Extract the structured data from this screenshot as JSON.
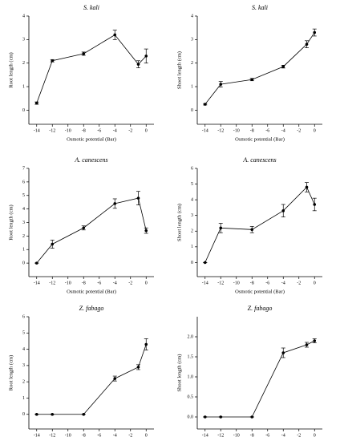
{
  "chart_data": [
    {
      "type": "line",
      "title": "S. kali",
      "xlabel": "Osmotic potential (Bar)",
      "ylabel": "Root length (cm)",
      "x": [
        -14,
        -12,
        -8,
        -4,
        -1,
        0
      ],
      "values": [
        0.3,
        2.1,
        2.4,
        3.2,
        1.95,
        2.3
      ],
      "errors": [
        0.05,
        0.05,
        0.07,
        0.2,
        0.15,
        0.3
      ],
      "xlim": [
        -15,
        1
      ],
      "xticks": [
        -14,
        -12,
        -10,
        -8,
        -6,
        -4,
        -2,
        0
      ],
      "ylim": [
        -0.6,
        4
      ],
      "yticks": [
        0,
        1,
        2,
        3,
        4
      ],
      "color": "#000000"
    },
    {
      "type": "line",
      "title": "S. kali",
      "xlabel": "Osmotic potential (Bar)",
      "ylabel": "Shoot length (cm)",
      "x": [
        -14,
        -12,
        -8,
        -4,
        -1,
        0
      ],
      "values": [
        0.25,
        1.1,
        1.3,
        1.85,
        2.8,
        3.3
      ],
      "errors": [
        0.03,
        0.12,
        0.05,
        0.06,
        0.15,
        0.15
      ],
      "xlim": [
        -15,
        1
      ],
      "xticks": [
        -14,
        -12,
        -10,
        -8,
        -6,
        -4,
        -2,
        0
      ],
      "ylim": [
        -0.6,
        4
      ],
      "yticks": [
        0,
        1,
        2,
        3,
        4
      ],
      "color": "#000000"
    },
    {
      "type": "line",
      "title": "A. canescens",
      "xlabel": "Osmotic potential (Bar)",
      "ylabel": "Root length (cm)",
      "x": [
        -14,
        -12,
        -8,
        -4,
        -1,
        0
      ],
      "values": [
        0,
        1.4,
        2.6,
        4.4,
        4.8,
        2.4
      ],
      "errors": [
        0,
        0.3,
        0.15,
        0.35,
        0.5,
        0.2
      ],
      "xlim": [
        -15,
        1
      ],
      "xticks": [
        -14,
        -12,
        -10,
        -8,
        -6,
        -4,
        -2,
        0
      ],
      "ylim": [
        -1,
        7
      ],
      "yticks": [
        0,
        1,
        2,
        3,
        4,
        5,
        6,
        7
      ],
      "color": "#000000"
    },
    {
      "type": "line",
      "title": "A. canescens",
      "xlabel": "Osmotic potential (Bar)",
      "ylabel": "Shoot length (cm)",
      "x": [
        -14,
        -12,
        -8,
        -4,
        -1,
        0
      ],
      "values": [
        0,
        2.2,
        2.1,
        3.3,
        4.8,
        3.7
      ],
      "errors": [
        0,
        0.3,
        0.2,
        0.4,
        0.3,
        0.4
      ],
      "xlim": [
        -15,
        1
      ],
      "xticks": [
        -14,
        -12,
        -10,
        -8,
        -6,
        -4,
        -2,
        0
      ],
      "ylim": [
        -0.9,
        6
      ],
      "yticks": [
        0,
        1,
        2,
        3,
        4,
        5,
        6
      ],
      "color": "#000000"
    },
    {
      "type": "line",
      "title": "Z. fabago",
      "xlabel": "Osmotic potential (Bar)",
      "ylabel": "Root length (cm)",
      "x": [
        -14,
        -12,
        -8,
        -4,
        -1,
        0
      ],
      "values": [
        0,
        0,
        0,
        2.2,
        2.9,
        4.3
      ],
      "errors": [
        0,
        0,
        0,
        0.15,
        0.15,
        0.35
      ],
      "xlim": [
        -15,
        1
      ],
      "xticks": [
        -14,
        -12,
        -10,
        -8,
        -6,
        -4,
        -2,
        0
      ],
      "ylim": [
        -0.9,
        6
      ],
      "yticks": [
        0,
        1,
        2,
        3,
        4,
        5,
        6
      ],
      "color": "#000000"
    },
    {
      "type": "line",
      "title": "Z. fabago",
      "xlabel": "Osmotic potential (Bar)",
      "ylabel": "Shoot length (cm)",
      "x": [
        -14,
        -12,
        -8,
        -4,
        -1,
        0
      ],
      "values": [
        0,
        0,
        0,
        1.6,
        1.8,
        1.9
      ],
      "errors": [
        0,
        0,
        0,
        0.12,
        0.06,
        0.05
      ],
      "xlim": [
        -15,
        1
      ],
      "xticks": [
        -14,
        -12,
        -10,
        -8,
        -6,
        -4,
        -2,
        0
      ],
      "ylim": [
        -0.3,
        2.5
      ],
      "yticks": [
        {
          "value": 0,
          "label": "0.0"
        },
        0.5,
        {
          "value": 1,
          "label": "1.0"
        },
        1.5,
        {
          "value": 2,
          "label": "2.0"
        }
      ],
      "color": "#000000"
    }
  ]
}
